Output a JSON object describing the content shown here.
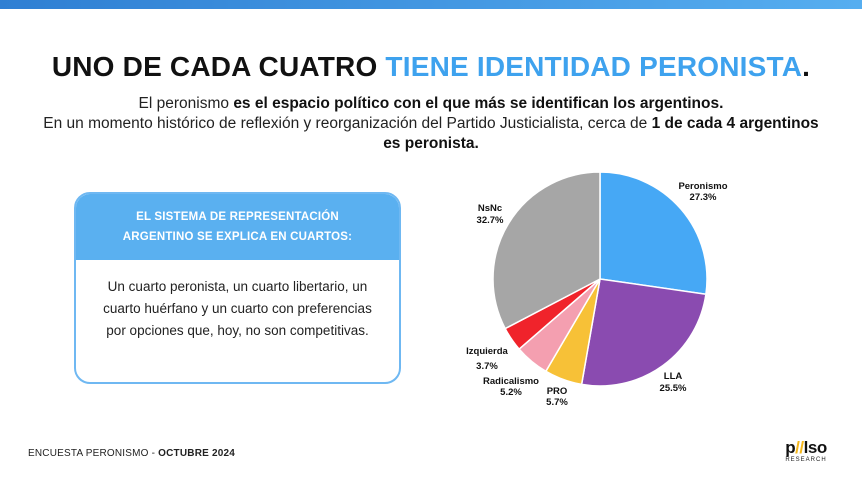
{
  "headline": {
    "part1": "UNO DE CADA CUATRO ",
    "part2": "TIENE IDENTIDAD PERONISTA",
    "part3": "."
  },
  "subtitle": {
    "line1_a": "El peronismo ",
    "line1_b": "es el espacio político con el que más se identifican los argentinos.",
    "line2_a": "En un momento histórico de reflexión y reorganización del Partido Justicialista, cerca de ",
    "line2_b": "1 de cada 4 argentinos es peronista."
  },
  "card": {
    "header_line1": "EL SISTEMA DE REPRESENTACIÓN",
    "header_line2": "ARGENTINO SE EXPLICA EN CUARTOS:",
    "body": "Un cuarto peronista, un cuarto libertario, un cuarto huérfano y un cuarto con preferencias por opciones que, hoy, no son competitivas."
  },
  "chart_data": {
    "type": "pie",
    "start_angle_deg": 0,
    "direction": "clockwise",
    "slices": [
      {
        "label": "Peronismo",
        "value": 27.3,
        "display": "27.3%",
        "color": "#46a8f5"
      },
      {
        "label": "LLA",
        "value": 25.5,
        "display": "25.5%",
        "color": "#8a4bb0"
      },
      {
        "label": "PRO",
        "value": 5.7,
        "display": "5.7%",
        "color": "#f7c137"
      },
      {
        "label": "Radicalismo",
        "value": 5.2,
        "display": "5.2%",
        "color": "#f49fb0"
      },
      {
        "label": "Izquierda",
        "value": 3.7,
        "display": "3.7%",
        "color": "#f0232b"
      },
      {
        "label": "NsNc",
        "value": 32.7,
        "display": "32.7%",
        "color": "#a6a6a6"
      }
    ]
  },
  "footer": {
    "label": "ENCUESTA PERONISMO - ",
    "date": "OCTUBRE 2024"
  },
  "logo": {
    "word_a": "p",
    "word_b": "l",
    "word_c": "so",
    "sub": "RESEARCH"
  }
}
